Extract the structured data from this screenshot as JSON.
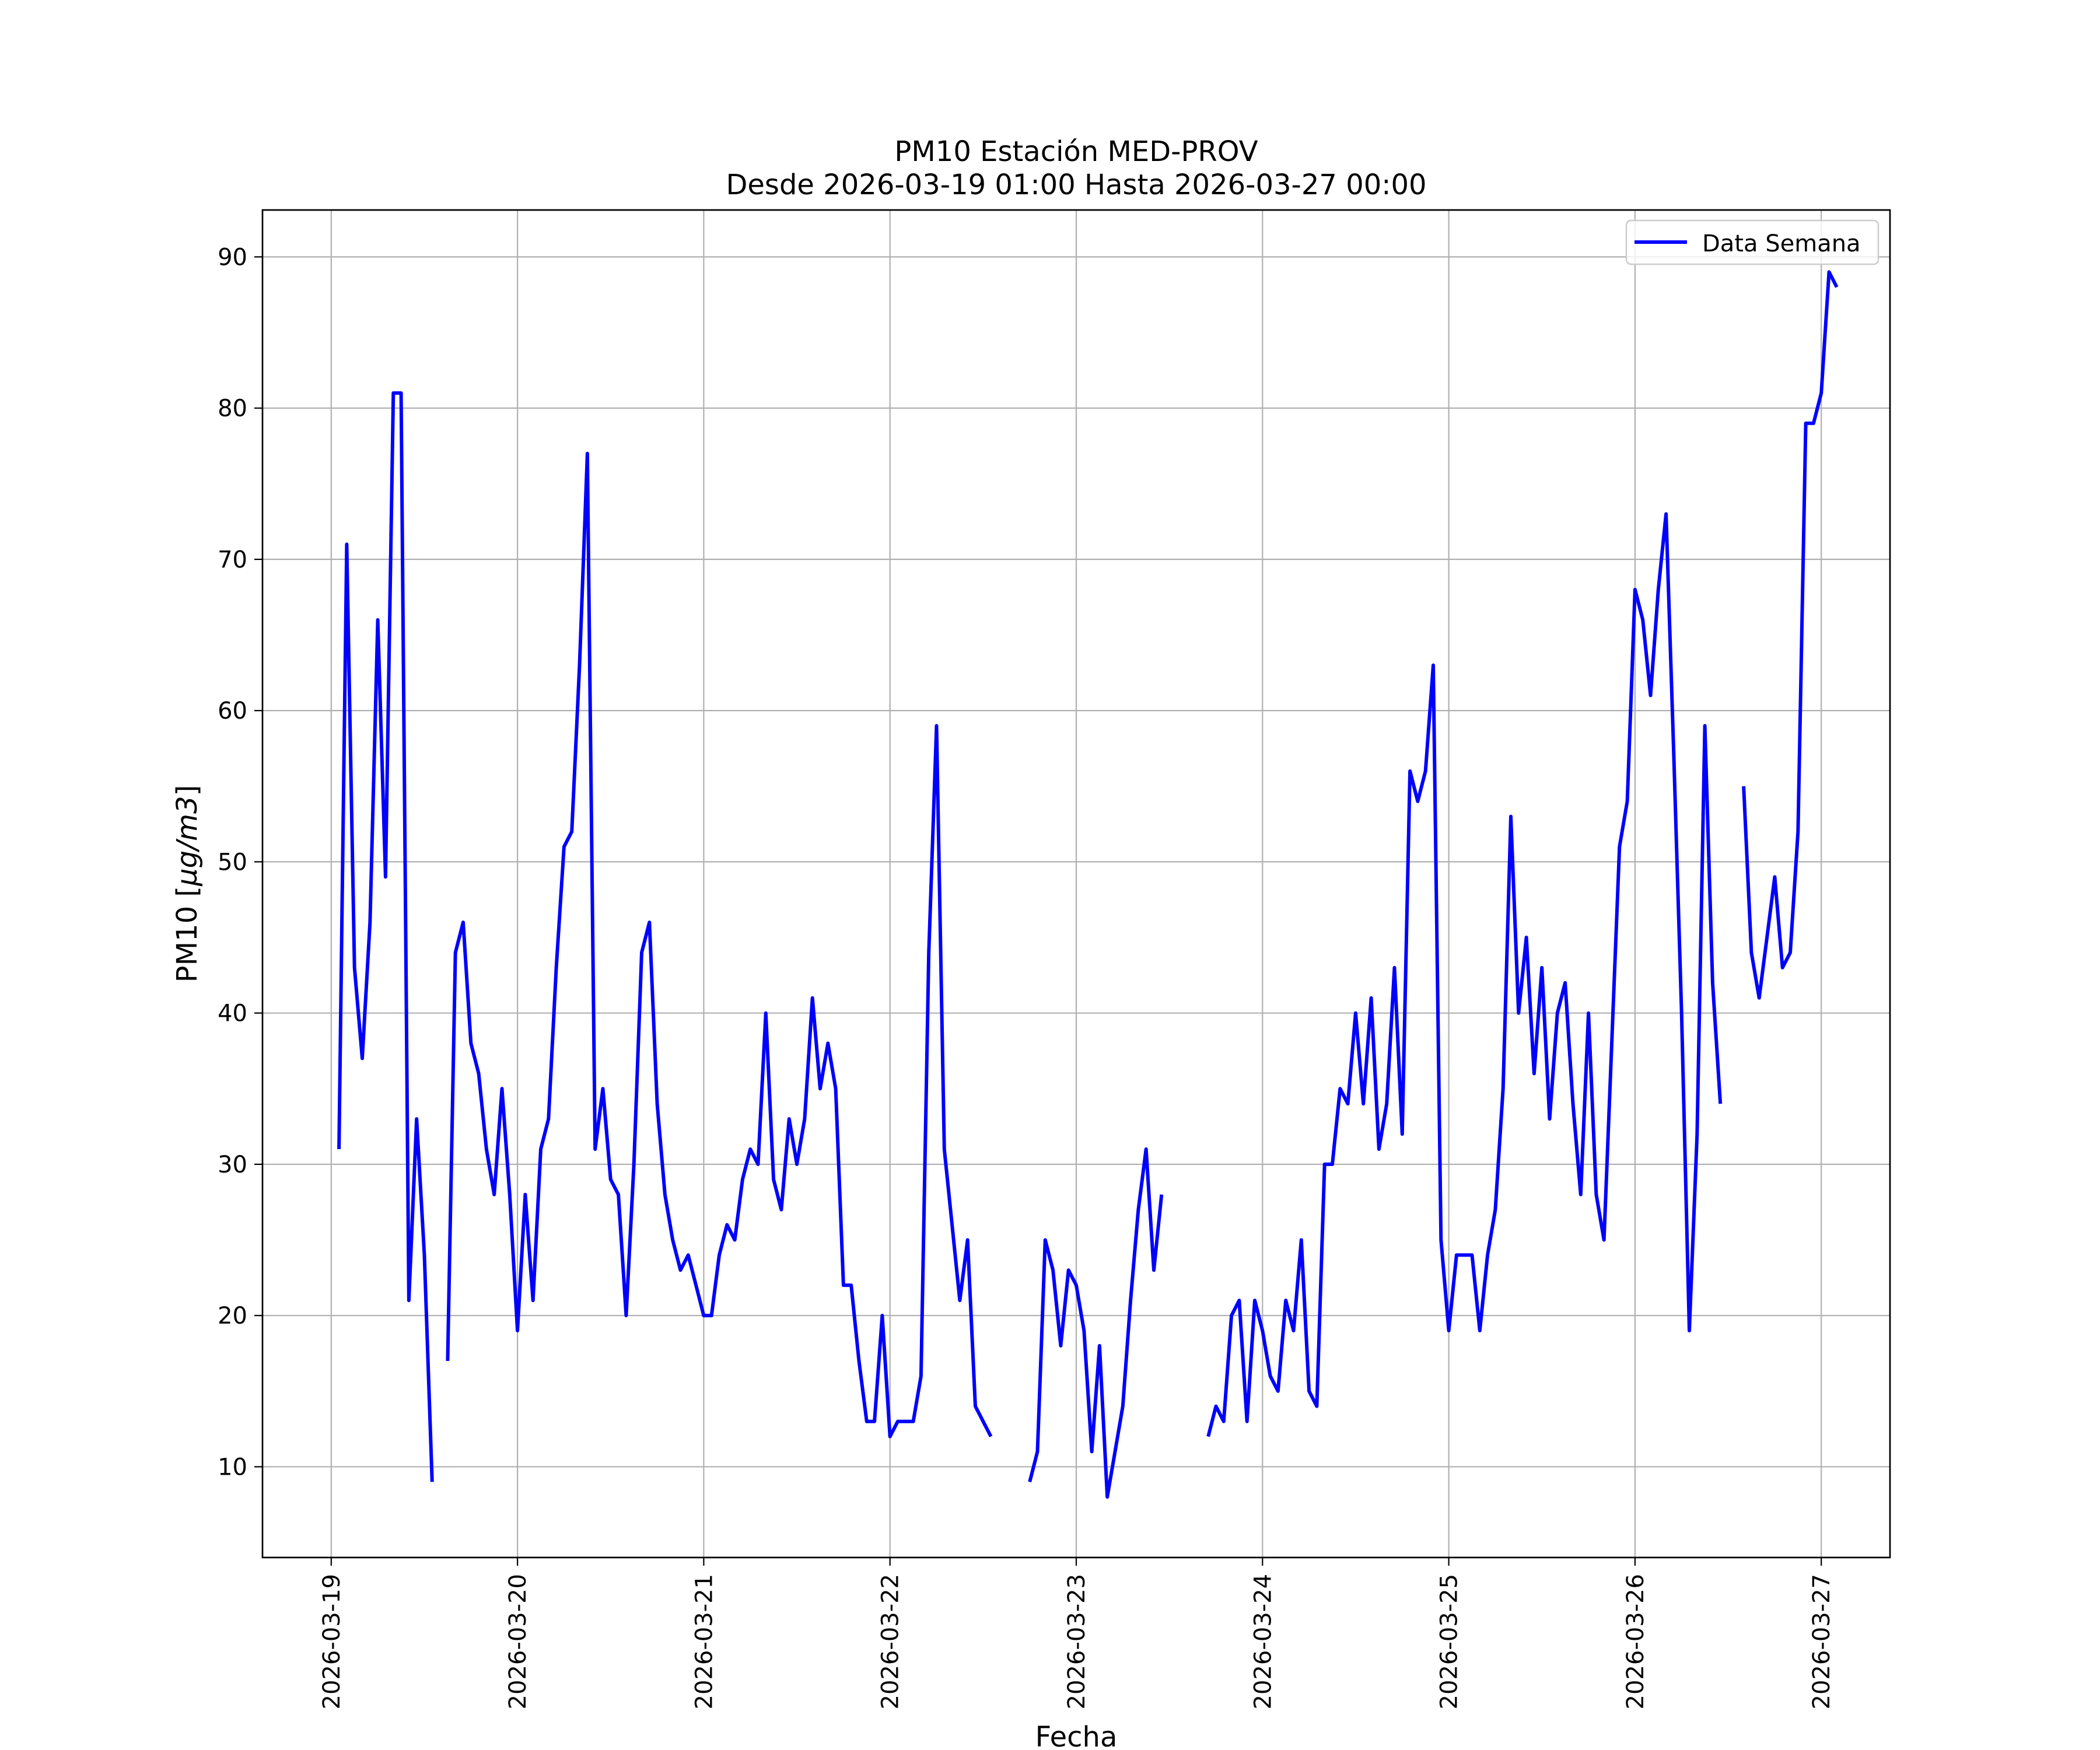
{
  "chart_data": {
    "type": "line",
    "title": "PM10 Estación MED-PROV",
    "subtitle": "Desde 2026-03-19 01:00 Hasta 2026-03-27 00:00",
    "xlabel": "Fecha",
    "ylabel_main": "PM10 [",
    "ylabel_math": "μg/m3",
    "ylabel_close": "]",
    "x_ticks": [
      "2026-03-19",
      "2026-03-20",
      "2026-03-21",
      "2026-03-22",
      "2026-03-23",
      "2026-03-24",
      "2026-03-25",
      "2026-03-26",
      "2026-03-27"
    ],
    "y_ticks": [
      10,
      20,
      30,
      40,
      50,
      60,
      70,
      80,
      90
    ],
    "xlim_days": [
      -0.369,
      8.369
    ],
    "ylim": [
      4.0,
      93.1
    ],
    "grid": true,
    "legend_position": "upper right",
    "line_color": "#0000ff",
    "series": [
      {
        "name": "Data Semana",
        "values": [
          31,
          71,
          43,
          37,
          46,
          66,
          49,
          81,
          81,
          21,
          33,
          24,
          9,
          null,
          17,
          44,
          46,
          38,
          36,
          31,
          28,
          35,
          28,
          19,
          28,
          21,
          31,
          33,
          43,
          51,
          52,
          63,
          77,
          31,
          35,
          29,
          28,
          20,
          30,
          44,
          46,
          34,
          28,
          25,
          23,
          24,
          22,
          20,
          20,
          24,
          26,
          25,
          29,
          31,
          30,
          40,
          29,
          27,
          33,
          30,
          33,
          41,
          35,
          38,
          35,
          22,
          22,
          17,
          13,
          13,
          20,
          12,
          13,
          13,
          13,
          16,
          44,
          59,
          31,
          26,
          21,
          25,
          14,
          13,
          12,
          null,
          null,
          null,
          null,
          9,
          11,
          25,
          23,
          18,
          23,
          22,
          19,
          11,
          18,
          8,
          11,
          14,
          21,
          27,
          31,
          23,
          28,
          null,
          null,
          null,
          null,
          null,
          12,
          14,
          13,
          20,
          21,
          13,
          21,
          19,
          16,
          15,
          21,
          19,
          25,
          15,
          14,
          30,
          30,
          35,
          34,
          40,
          34,
          41,
          31,
          34,
          43,
          32,
          56,
          54,
          56,
          63,
          25,
          19,
          24,
          24,
          24,
          19,
          24,
          27,
          35,
          53,
          40,
          45,
          36,
          43,
          33,
          40,
          42,
          34,
          28,
          40,
          28,
          25,
          38,
          51,
          54,
          68,
          66,
          61,
          68,
          73,
          57,
          40,
          19,
          32,
          59,
          42,
          34,
          null,
          null,
          55,
          44,
          41,
          45,
          49,
          43,
          44,
          52,
          79,
          79,
          81,
          89,
          88
        ]
      }
    ]
  }
}
